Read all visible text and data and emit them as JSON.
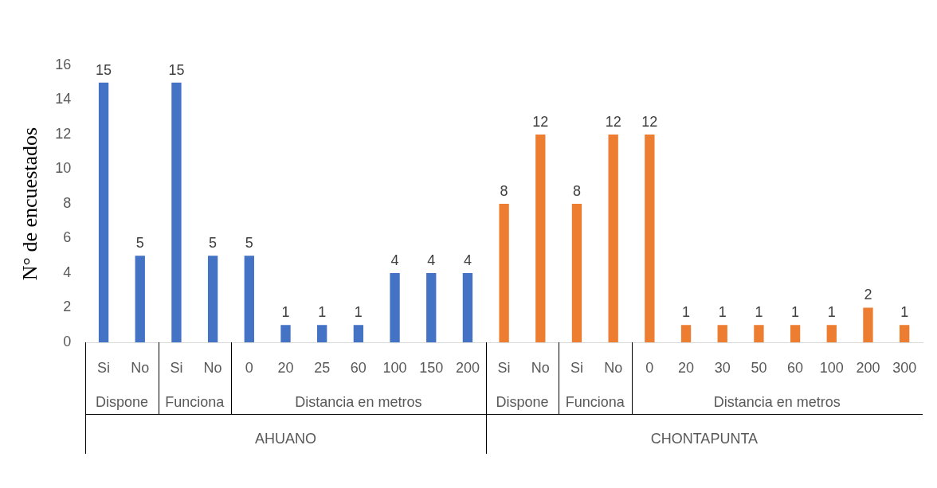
{
  "chart_data": {
    "type": "bar",
    "ylabel": "N° de encuestados",
    "categories": [
      "Si",
      "No",
      "Si",
      "No",
      "0",
      "20",
      "25",
      "60",
      "100",
      "150",
      "200",
      "Si",
      "No",
      "Si",
      "No",
      "0",
      "20",
      "30",
      "50",
      "60",
      "100",
      "200",
      "300"
    ],
    "series": [
      {
        "color": "#4472c4",
        "values": [
          15,
          5,
          null,
          null,
          null,
          null,
          null,
          null,
          null,
          null,
          null,
          null,
          null,
          null,
          null,
          null,
          null,
          null,
          null,
          null,
          null,
          null,
          null
        ]
      },
      {
        "color": "#4472c4",
        "values": [
          null,
          null,
          15,
          5,
          null,
          null,
          null,
          null,
          null,
          null,
          null,
          null,
          null,
          null,
          null,
          null,
          null,
          null,
          null,
          null,
          null,
          null,
          null
        ]
      },
      {
        "color": "#4472c4",
        "values": [
          null,
          null,
          null,
          null,
          5,
          1,
          1,
          1,
          4,
          4,
          4,
          null,
          null,
          null,
          null,
          null,
          null,
          null,
          null,
          null,
          null,
          null,
          null
        ]
      },
      {
        "color": "#ed7d31",
        "values": [
          null,
          null,
          null,
          null,
          null,
          null,
          null,
          null,
          null,
          null,
          null,
          8,
          12,
          null,
          null,
          null,
          null,
          null,
          null,
          null,
          null,
          null,
          null
        ]
      },
      {
        "color": "#ed7d31",
        "values": [
          null,
          null,
          null,
          null,
          null,
          null,
          null,
          null,
          null,
          null,
          null,
          null,
          null,
          8,
          12,
          null,
          null,
          null,
          null,
          null,
          null,
          null,
          null
        ]
      },
      {
        "color": "#ed7d31",
        "values": [
          null,
          null,
          null,
          null,
          null,
          null,
          null,
          null,
          null,
          null,
          null,
          null,
          null,
          null,
          null,
          12,
          1,
          1,
          1,
          1,
          1,
          2,
          1
        ]
      }
    ],
    "annotations": [
      "Dispone",
      "Funciona",
      "Distancia en metros",
      "Dispone",
      "Funciona",
      "Distancia en metros",
      "AHUANO",
      "CHONTAPUNTA"
    ],
    "ylim": [
      0,
      16
    ],
    "yticks": [
      0,
      2,
      4,
      6,
      8,
      10,
      12,
      14,
      16
    ],
    "grid": false,
    "legend": false,
    "data_labels": true
  }
}
